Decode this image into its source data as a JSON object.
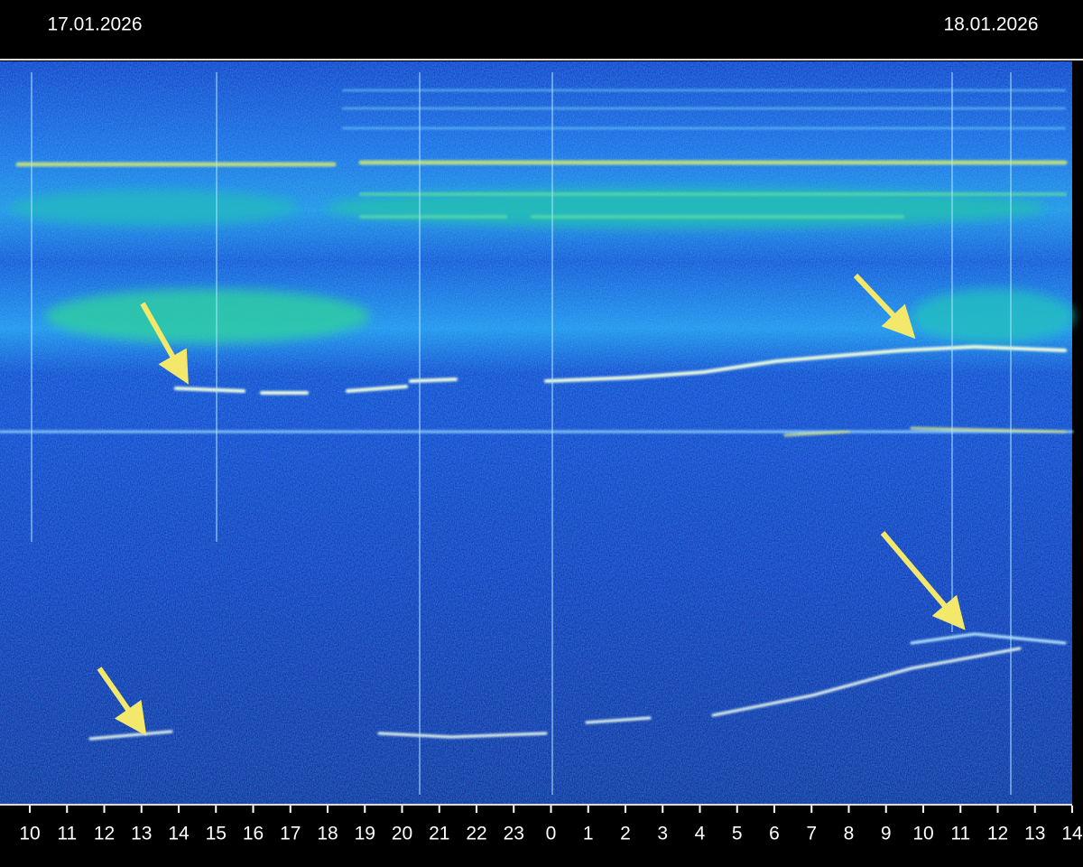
{
  "chart_data": {
    "type": "spectrogram",
    "dates": [
      "17.01.2026",
      "18.01.2026"
    ],
    "categories": [
      "10",
      "11",
      "12",
      "13",
      "14",
      "15",
      "16",
      "17",
      "18",
      "19",
      "20",
      "21",
      "22",
      "23",
      "0",
      "1",
      "2",
      "3",
      "4",
      "5",
      "6",
      "7",
      "8",
      "9",
      "10",
      "11",
      "12",
      "13",
      "14"
    ]
  }
}
